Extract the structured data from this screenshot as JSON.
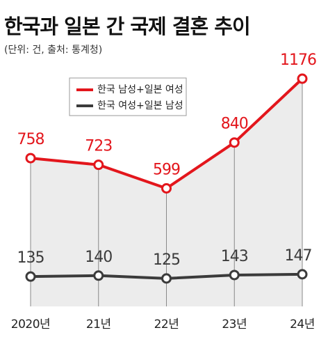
{
  "chart_data": {
    "type": "line",
    "title": "한국과 일본 간 국제 결혼 추이",
    "subtitle": "(단위: 건, 출처: 통계청)",
    "categories": [
      "2020년",
      "21년",
      "22년",
      "23년",
      "24년"
    ],
    "series": [
      {
        "name": "한국 남성+일본 여성",
        "color": "#e3161c",
        "values": [
          758,
          723,
          599,
          840,
          1176
        ]
      },
      {
        "name": "한국 여성+일본 남성",
        "color": "#3b3b3b",
        "values": [
          135,
          140,
          125,
          143,
          147
        ]
      }
    ],
    "area_color": "#ececec"
  }
}
